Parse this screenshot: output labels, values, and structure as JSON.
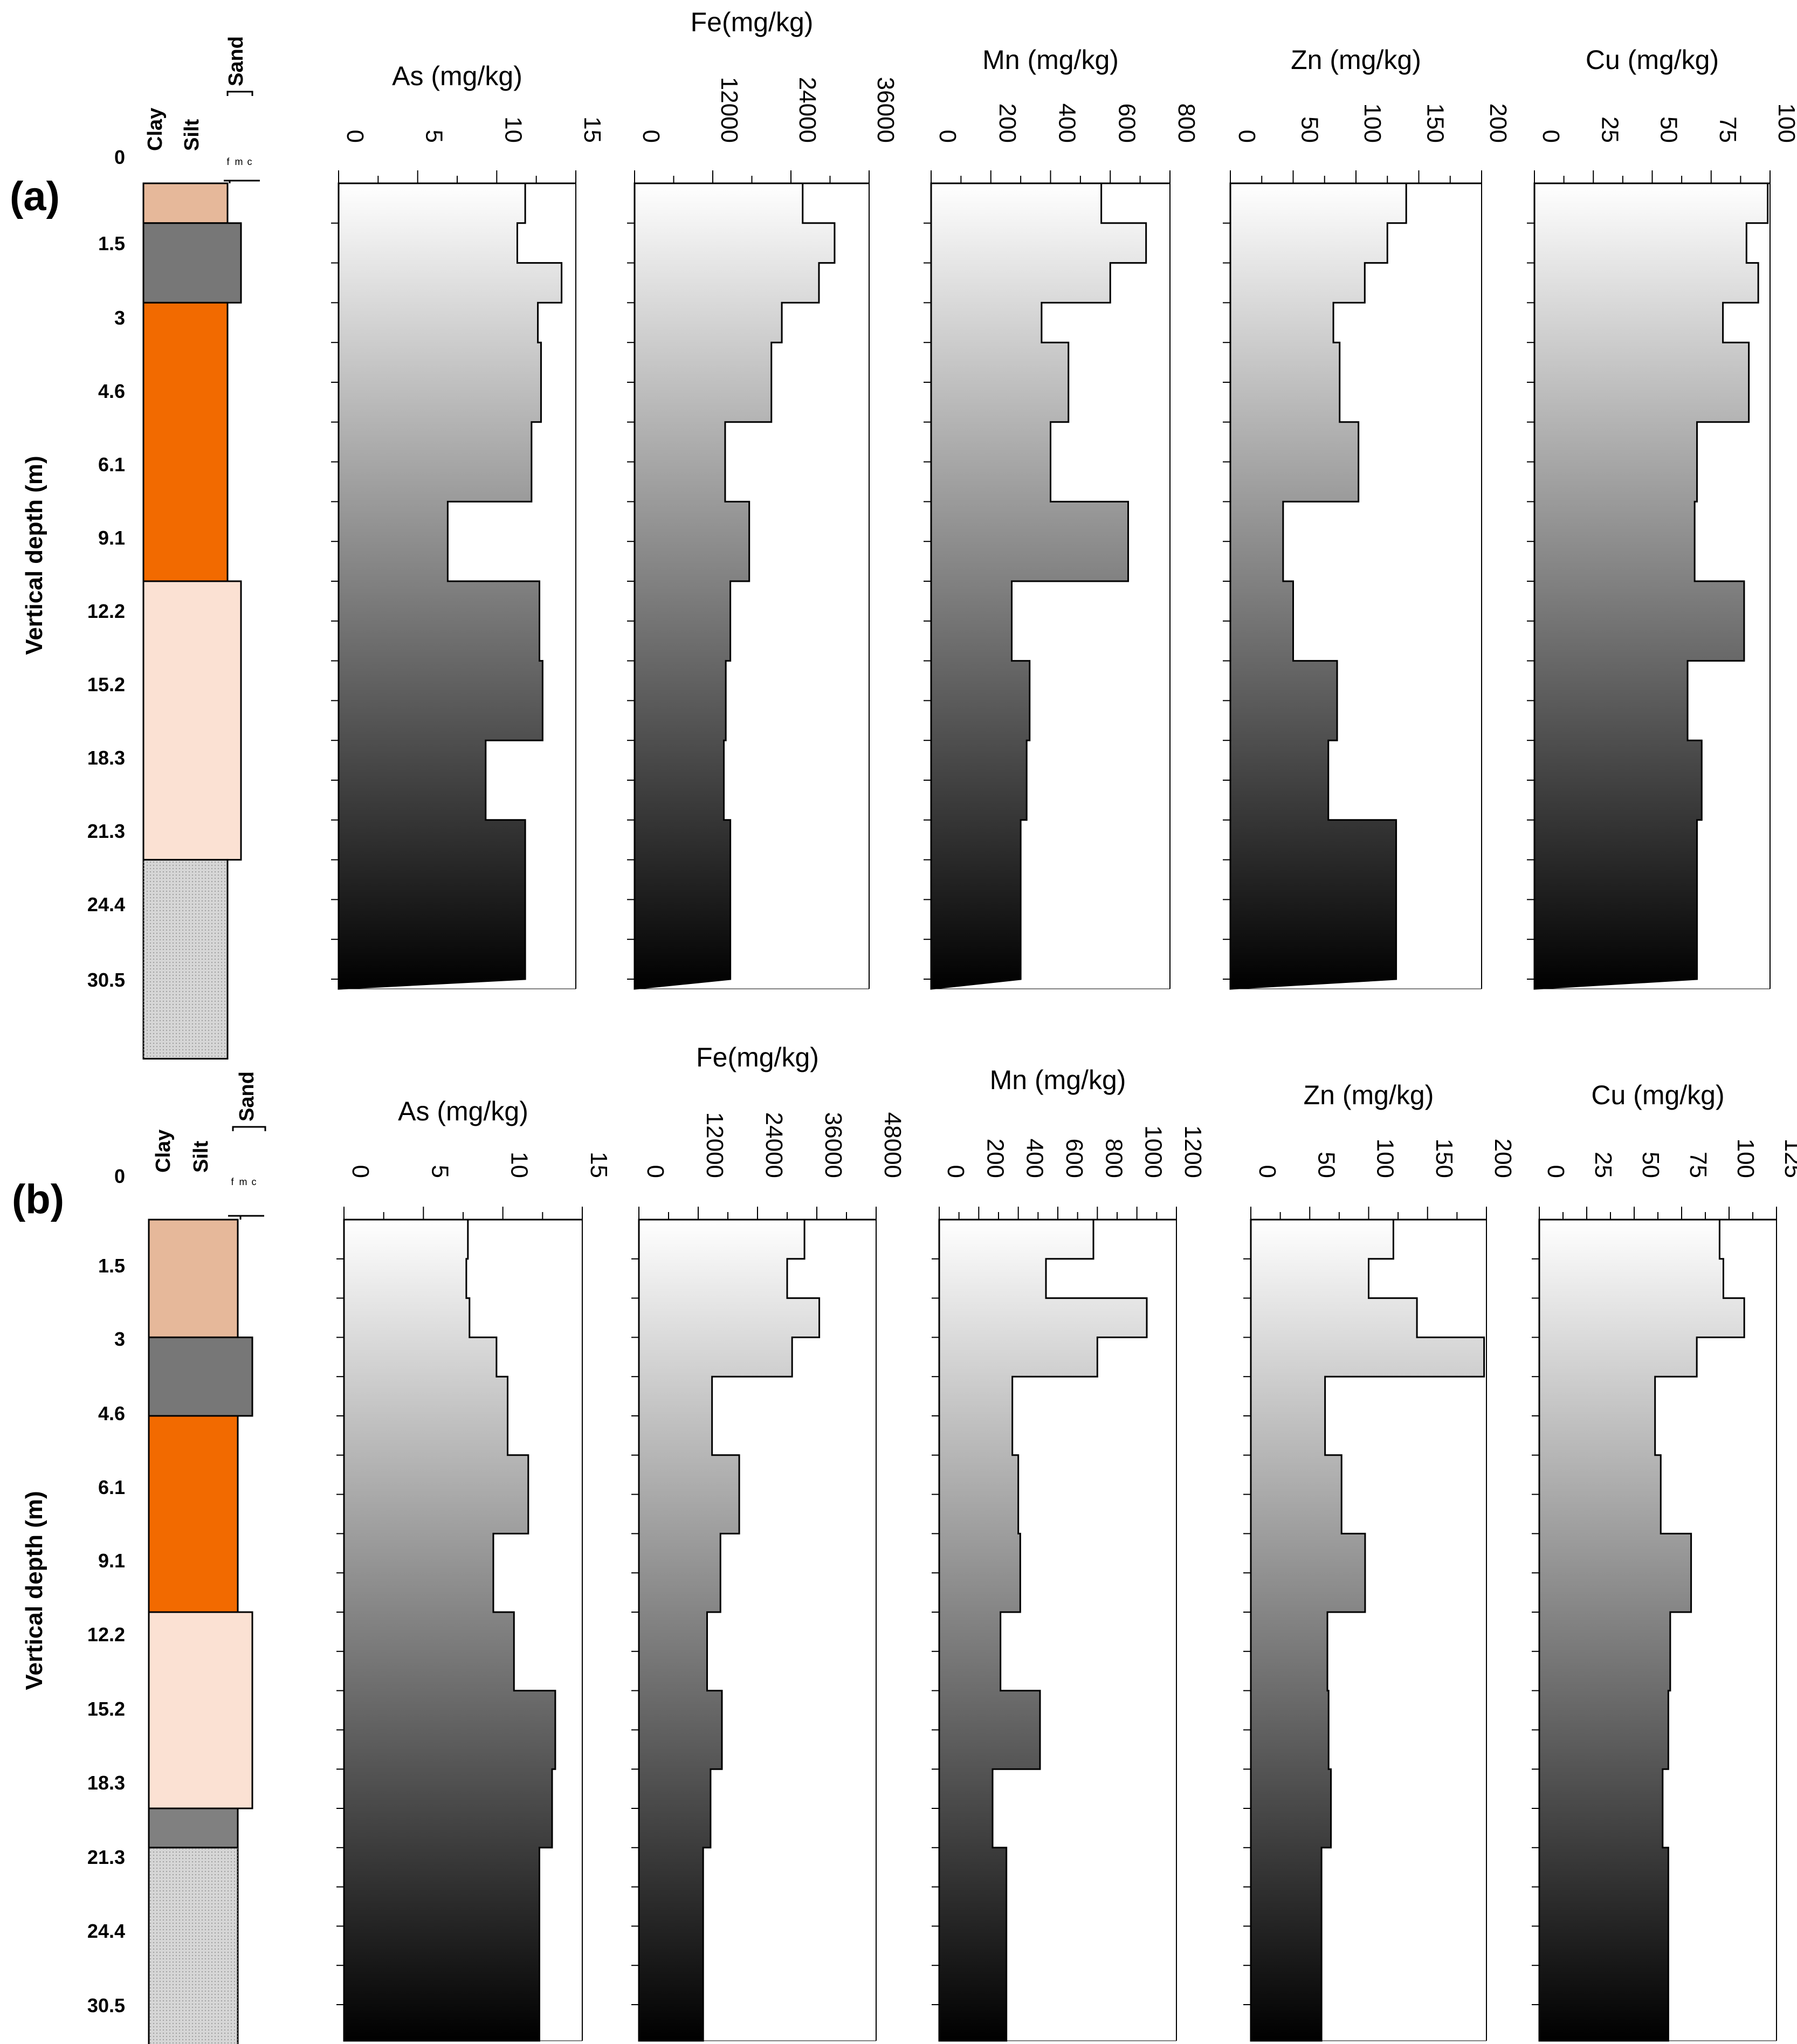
{
  "y_axis_label": "Vertical depth (m)",
  "lithology_labels": [
    "Clay",
    "Silt",
    "Sand"
  ],
  "sand_grades": [
    "f",
    "m",
    "c"
  ],
  "colors": {
    "Clay-brown": "#e6b89a",
    "Silt-grey": "#777777",
    "Clay-orange": "#f26a00",
    "Sand-peach": "#fbe1d3",
    "Sand-grey": "#d6d6d6",
    "Silt-dark": "#808080",
    "gradient-top": "#ffffff",
    "gradient-bottom": "#000000"
  },
  "chart_data": [
    {
      "panel": "(a)",
      "type": "depth-profile",
      "depth_labels": [
        "0",
        "1.5",
        "3",
        "4.6",
        "6.1",
        "9.1",
        "12.2",
        "15.2",
        "18.3",
        "21.3",
        "24.4",
        "30.5"
      ],
      "lithology": [
        {
          "from": 0,
          "to": 1,
          "color": "Clay-brown"
        },
        {
          "from": 1,
          "to": 3,
          "color": "Silt-grey"
        },
        {
          "from": 3,
          "to": 10,
          "color": "Clay-orange"
        },
        {
          "from": 10,
          "to": 17,
          "color": "Sand-peach"
        },
        {
          "from": 17,
          "to": 22,
          "color": "Sand-grey"
        }
      ],
      "tracks": [
        {
          "title": "As (mg/kg)",
          "ticks": [
            "0",
            "5",
            "10",
            "15"
          ],
          "xlim": [
            0,
            15
          ],
          "steps": [
            [
              0,
              1,
              11.8
            ],
            [
              1,
              2,
              11.3
            ],
            [
              2,
              3,
              14.1
            ],
            [
              3,
              4,
              12.6
            ],
            [
              4,
              6,
              12.8
            ],
            [
              6,
              8,
              12.2
            ],
            [
              8,
              10,
              6.9
            ],
            [
              10,
              12,
              12.7
            ],
            [
              12,
              14,
              12.9
            ],
            [
              14,
              16,
              9.3
            ],
            [
              16,
              20,
              11.8
            ]
          ]
        },
        {
          "title": "Fe(mg/kg)",
          "ticks": [
            "0",
            "12000",
            "24000",
            "36000"
          ],
          "xlim": [
            0,
            36000
          ],
          "steps": [
            [
              0,
              1,
              25800
            ],
            [
              1,
              2,
              30700
            ],
            [
              2,
              3,
              28300
            ],
            [
              3,
              4,
              22600
            ],
            [
              4,
              6,
              21000
            ],
            [
              6,
              8,
              13900
            ],
            [
              8,
              10,
              17600
            ],
            [
              10,
              12,
              14700
            ],
            [
              12,
              14,
              14000
            ],
            [
              14,
              16,
              13700
            ],
            [
              16,
              20,
              14700
            ]
          ]
        },
        {
          "title": "Mn (mg/kg)",
          "ticks": [
            "0",
            "200",
            "400",
            "600",
            "800"
          ],
          "xlim": [
            0,
            800
          ],
          "steps": [
            [
              0,
              1,
              570
            ],
            [
              1,
              2,
              720
            ],
            [
              2,
              3,
              600
            ],
            [
              3,
              4,
              370
            ],
            [
              4,
              6,
              460
            ],
            [
              6,
              8,
              400
            ],
            [
              8,
              10,
              660
            ],
            [
              10,
              12,
              270
            ],
            [
              12,
              14,
              330
            ],
            [
              14,
              16,
              320
            ],
            [
              16,
              20,
              300
            ]
          ]
        },
        {
          "title": "Zn (mg/kg)",
          "ticks": [
            "0",
            "50",
            "100",
            "150",
            "200"
          ],
          "xlim": [
            0,
            200
          ],
          "steps": [
            [
              0,
              1,
              140
            ],
            [
              1,
              2,
              125
            ],
            [
              2,
              3,
              107
            ],
            [
              3,
              4,
              82
            ],
            [
              4,
              6,
              87
            ],
            [
              6,
              8,
              102
            ],
            [
              8,
              10,
              42
            ],
            [
              10,
              12,
              50
            ],
            [
              12,
              14,
              85
            ],
            [
              14,
              16,
              78
            ],
            [
              16,
              20,
              132
            ]
          ]
        },
        {
          "title": "Cu (mg/kg)",
          "ticks": [
            "0",
            "25",
            "50",
            "75",
            "100"
          ],
          "xlim": [
            0,
            100
          ],
          "steps": [
            [
              0,
              1,
              99
            ],
            [
              1,
              2,
              90
            ],
            [
              2,
              3,
              95
            ],
            [
              3,
              4,
              80
            ],
            [
              4,
              6,
              91
            ],
            [
              6,
              8,
              69
            ],
            [
              8,
              10,
              68
            ],
            [
              10,
              12,
              89
            ],
            [
              12,
              14,
              65
            ],
            [
              14,
              16,
              71
            ],
            [
              16,
              20,
              69
            ]
          ]
        }
      ]
    },
    {
      "panel": "(b)",
      "type": "depth-profile",
      "depth_labels": [
        "0",
        "1.5",
        "3",
        "4.6",
        "6.1",
        "9.1",
        "12.2",
        "15.2",
        "18.3",
        "21.3",
        "24.4",
        "30.5"
      ],
      "lithology": [
        {
          "from": 0,
          "to": 3,
          "color": "Clay-brown"
        },
        {
          "from": 3,
          "to": 5,
          "color": "Silt-grey"
        },
        {
          "from": 5,
          "to": 10,
          "color": "Clay-orange"
        },
        {
          "from": 10,
          "to": 15,
          "color": "Sand-peach"
        },
        {
          "from": 15,
          "to": 16,
          "color": "Silt-dark"
        },
        {
          "from": 16,
          "to": 23,
          "color": "Sand-grey"
        }
      ],
      "tracks": [
        {
          "title": "As (mg/kg)",
          "ticks": [
            "0",
            "5",
            "10",
            "15"
          ],
          "xlim": [
            0,
            15
          ],
          "steps": [
            [
              0,
              1,
              7.8
            ],
            [
              1,
              2,
              7.7
            ],
            [
              2,
              3,
              7.9
            ],
            [
              3,
              4,
              9.6
            ],
            [
              4,
              6,
              10.3
            ],
            [
              6,
              8,
              11.6
            ],
            [
              8,
              10,
              9.4
            ],
            [
              10,
              12,
              10.7
            ],
            [
              12,
              14,
              13.3
            ],
            [
              14,
              16,
              13.1
            ],
            [
              16,
              21,
              12.3
            ]
          ]
        },
        {
          "title": "Fe(mg/kg)",
          "ticks": [
            "0",
            "12000",
            "24000",
            "36000",
            "48000"
          ],
          "xlim": [
            0,
            48000
          ],
          "steps": [
            [
              0,
              1,
              33500
            ],
            [
              1,
              2,
              30000
            ],
            [
              2,
              3,
              36500
            ],
            [
              3,
              4,
              31000
            ],
            [
              4,
              6,
              14800
            ],
            [
              6,
              8,
              20300
            ],
            [
              8,
              10,
              16500
            ],
            [
              10,
              12,
              13800
            ],
            [
              12,
              14,
              16800
            ],
            [
              14,
              16,
              14500
            ],
            [
              16,
              21,
              13000
            ]
          ]
        },
        {
          "title": "Mn (mg/kg)",
          "ticks": [
            "0",
            "200",
            "400",
            "600",
            "800",
            "1000",
            "1200"
          ],
          "xlim": [
            0,
            1200
          ],
          "steps": [
            [
              0,
              1,
              780
            ],
            [
              1,
              2,
              540
            ],
            [
              2,
              3,
              1050
            ],
            [
              3,
              4,
              800
            ],
            [
              4,
              6,
              370
            ],
            [
              6,
              8,
              400
            ],
            [
              8,
              10,
              410
            ],
            [
              10,
              12,
              310
            ],
            [
              12,
              14,
              510
            ],
            [
              14,
              16,
              270
            ],
            [
              16,
              21,
              340
            ]
          ]
        },
        {
          "title": "Zn (mg/kg)",
          "ticks": [
            "0",
            "50",
            "100",
            "150",
            "200"
          ],
          "xlim": [
            0,
            200
          ],
          "steps": [
            [
              0,
              1,
              121
            ],
            [
              1,
              2,
              100
            ],
            [
              2,
              3,
              141
            ],
            [
              3,
              4,
              198
            ],
            [
              4,
              6,
              63
            ],
            [
              6,
              8,
              77
            ],
            [
              8,
              10,
              97
            ],
            [
              10,
              12,
              65
            ],
            [
              12,
              14,
              66
            ],
            [
              14,
              16,
              68
            ],
            [
              16,
              21,
              60
            ]
          ]
        },
        {
          "title": "Cu (mg/kg)",
          "ticks": [
            "0",
            "25",
            "50",
            "75",
            "100",
            "125"
          ],
          "xlim": [
            0,
            125
          ],
          "steps": [
            [
              0,
              1,
              95
            ],
            [
              1,
              2,
              97
            ],
            [
              2,
              3,
              108
            ],
            [
              3,
              4,
              83
            ],
            [
              4,
              6,
              61
            ],
            [
              6,
              8,
              64
            ],
            [
              8,
              10,
              80
            ],
            [
              10,
              12,
              69
            ],
            [
              12,
              14,
              68
            ],
            [
              14,
              16,
              65
            ],
            [
              16,
              21,
              68
            ]
          ]
        }
      ]
    }
  ]
}
